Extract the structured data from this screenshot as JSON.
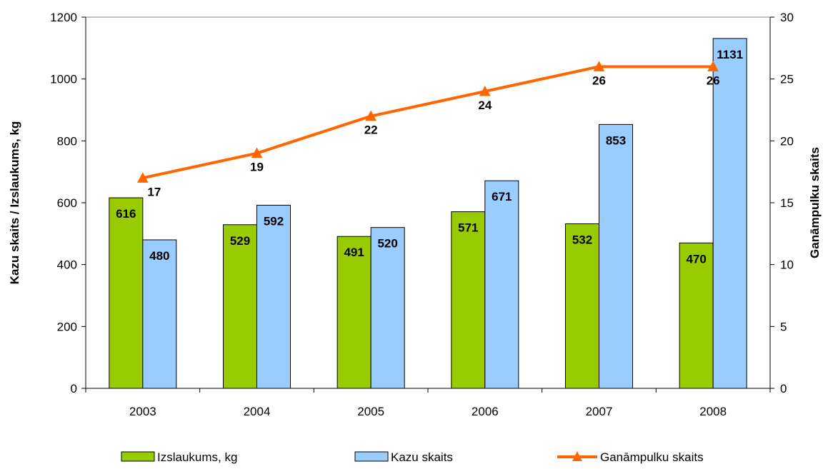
{
  "chart_data": {
    "type": "bar",
    "categories": [
      "2003",
      "2004",
      "2005",
      "2006",
      "2007",
      "2008"
    ],
    "series": [
      {
        "name": "Izslaukums, kg",
        "type": "bar",
        "axis": "left",
        "color": "#99cc00",
        "values": [
          616,
          529,
          491,
          571,
          532,
          470
        ]
      },
      {
        "name": "Kazu skaits",
        "type": "bar",
        "axis": "left",
        "color": "#99ccff",
        "values": [
          480,
          592,
          520,
          671,
          853,
          1131
        ]
      },
      {
        "name": "Ganāmpulku skaits",
        "type": "line",
        "axis": "right",
        "color": "#ff6600",
        "marker": "triangle",
        "values": [
          17,
          19,
          22,
          24,
          26,
          26
        ]
      }
    ],
    "ylabel": "Kazu skaits / Izslaukums, kg",
    "y2label": "Ganāmpulku skaits",
    "ylim": [
      0,
      1200
    ],
    "y_ticks": [
      0,
      200,
      400,
      600,
      800,
      1000,
      1200
    ],
    "y2lim": [
      0,
      30
    ],
    "y2_ticks": [
      0,
      5,
      10,
      15,
      20,
      25,
      30
    ],
    "grid": false,
    "legend": "bottom"
  }
}
